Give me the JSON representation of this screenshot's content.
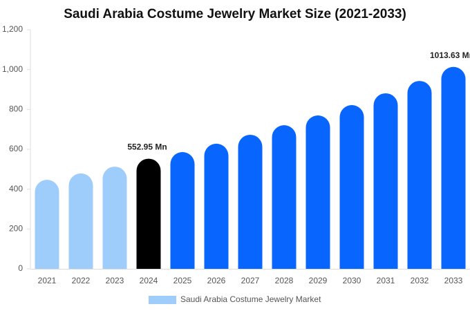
{
  "chart_data": {
    "type": "bar",
    "title": "Saudi Arabia Costume Jewelry Market Size (2021-2033)",
    "categories": [
      "2021",
      "2022",
      "2023",
      "2024",
      "2025",
      "2026",
      "2027",
      "2028",
      "2029",
      "2030",
      "2031",
      "2032",
      "2033"
    ],
    "series": [
      {
        "name": "Saudi Arabia Costume Jewelry Market",
        "color": "#9fcdfb",
        "values": [
          447,
          479,
          513,
          552.95,
          586,
          628,
          673,
          721,
          770,
          822,
          881,
          943,
          1013.63
        ],
        "value_labels": [
          null,
          null,
          null,
          "552.95 Mn",
          null,
          null,
          null,
          null,
          null,
          null,
          null,
          null,
          "1013.63 Mn"
        ],
        "colors": [
          "#9fcdfb",
          "#9fcdfb",
          "#9fcdfb",
          "#000000",
          "#0866ff",
          "#0866ff",
          "#0866ff",
          "#0866ff",
          "#0866ff",
          "#0866ff",
          "#0866ff",
          "#0866ff",
          "#0866ff"
        ]
      }
    ],
    "ylim": [
      0,
      1200
    ],
    "yticks": [
      0,
      200,
      400,
      600,
      800,
      {
        "value": 1000,
        "label": "1,000"
      },
      {
        "value": 1200,
        "label": "1,200"
      }
    ],
    "grid": false
  }
}
